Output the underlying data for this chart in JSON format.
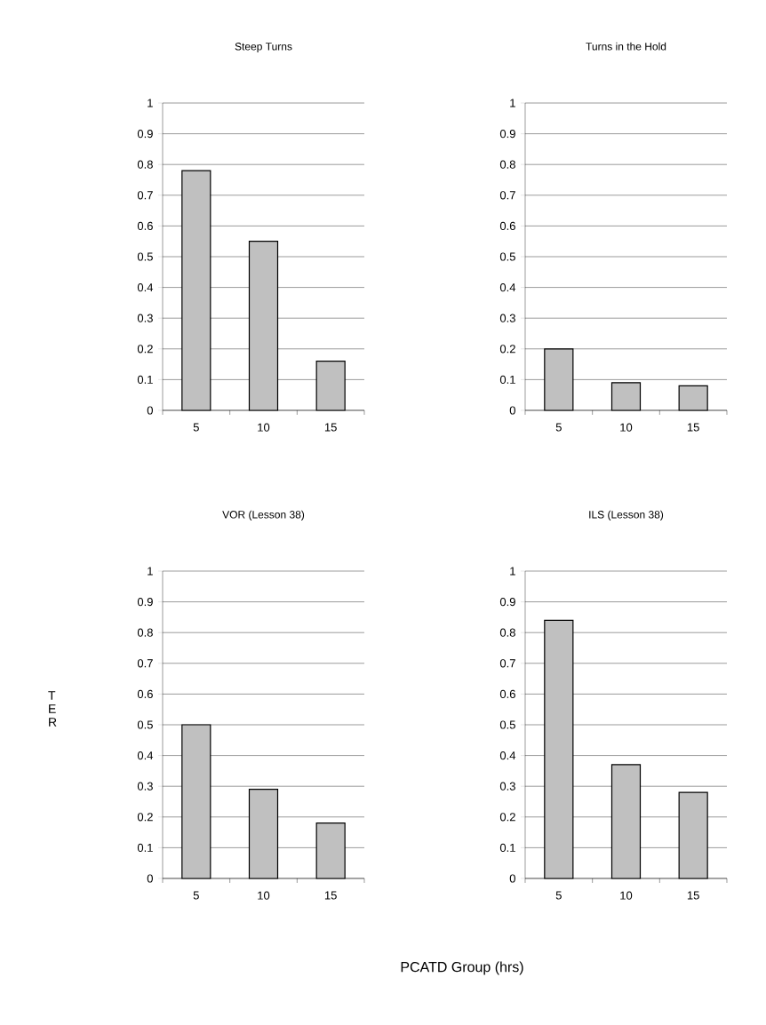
{
  "chart_data": [
    {
      "type": "bar",
      "title": "Steep Turns",
      "categories": [
        "5",
        "10",
        "15"
      ],
      "values": [
        0.78,
        0.55,
        0.16
      ],
      "color": "#c0c0c0",
      "ylim": [
        0,
        1
      ],
      "yticks": [
        0,
        0.1,
        0.2,
        0.3,
        0.4,
        0.5,
        0.6,
        0.7,
        0.8,
        0.9,
        1
      ],
      "grid": "y"
    },
    {
      "type": "bar",
      "title": "Turns in the Hold",
      "categories": [
        "5",
        "10",
        "15"
      ],
      "values": [
        0.2,
        0.09,
        0.08
      ],
      "color": "#c0c0c0",
      "ylim": [
        0,
        1
      ],
      "yticks": [
        0,
        0.1,
        0.2,
        0.3,
        0.4,
        0.5,
        0.6,
        0.7,
        0.8,
        0.9,
        1
      ],
      "grid": "y"
    },
    {
      "type": "bar",
      "title": "VOR (Lesson 38)",
      "ylabel": "T E R",
      "xlabel": "PCATD Group (hrs)",
      "categories": [
        "5",
        "10",
        "15"
      ],
      "values": [
        0.5,
        0.29,
        0.18
      ],
      "color": "#c0c0c0",
      "ylim": [
        0,
        1
      ],
      "yticks": [
        0,
        0.1,
        0.2,
        0.3,
        0.4,
        0.5,
        0.6,
        0.7,
        0.8,
        0.9,
        1
      ],
      "grid": "y"
    },
    {
      "type": "bar",
      "title": "ILS (Lesson 38)",
      "categories": [
        "5",
        "10",
        "15"
      ],
      "values": [
        0.84,
        0.37,
        0.28
      ],
      "color": "#c0c0c0",
      "ylim": [
        0,
        1
      ],
      "yticks": [
        0,
        0.1,
        0.2,
        0.3,
        0.4,
        0.5,
        0.6,
        0.7,
        0.8,
        0.9,
        1
      ],
      "grid": "y"
    }
  ]
}
